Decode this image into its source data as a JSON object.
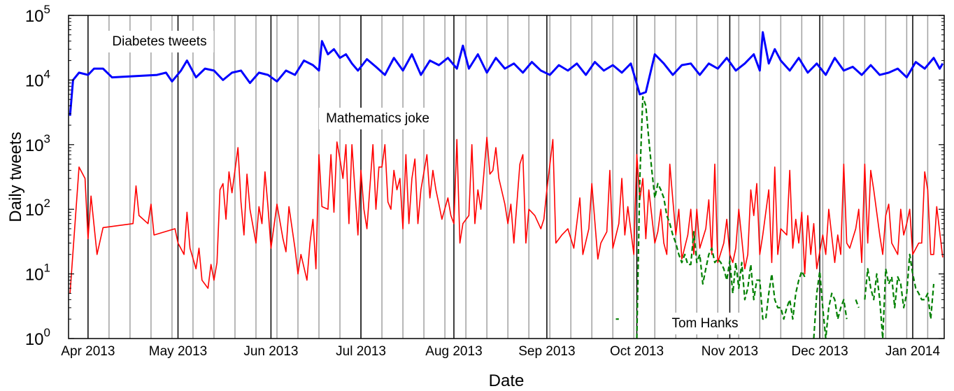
{
  "chart_data": {
    "type": "line",
    "xlabel": "Date",
    "ylabel": "Daily tweets",
    "log_y": true,
    "xlim": [
      -6.5,
      285.5
    ],
    "ylim": [
      1,
      100000
    ],
    "xticks": [
      {
        "value": 0,
        "label": "Apr 2013"
      },
      {
        "value": 30,
        "label": "May 2013"
      },
      {
        "value": 61,
        "label": "Jun 2013"
      },
      {
        "value": 91,
        "label": "Jul 2013"
      },
      {
        "value": 122,
        "label": "Aug 2013"
      },
      {
        "value": 153,
        "label": "Sep 2013"
      },
      {
        "value": 183,
        "label": "Oct 2013"
      },
      {
        "value": 214,
        "label": "Nov 2013"
      },
      {
        "value": 244,
        "label": "Dec 2013"
      },
      {
        "value": 275,
        "label": "Jan 2014"
      }
    ],
    "minor_xticks": [
      7,
      14,
      21,
      28,
      35,
      42,
      49,
      56,
      63,
      70,
      77,
      84,
      91,
      98,
      105,
      112,
      119,
      126,
      133,
      140,
      147,
      154,
      161,
      168,
      175,
      182,
      189,
      196,
      203,
      210,
      217,
      224,
      231,
      238,
      245,
      252,
      259,
      266,
      273,
      280
    ],
    "yticks": [
      {
        "value": 1,
        "label": "10",
        "sup": "0"
      },
      {
        "value": 10,
        "label": "10",
        "sup": "1"
      },
      {
        "value": 100,
        "label": "10",
        "sup": "2"
      },
      {
        "value": 1000,
        "label": "10",
        "sup": "3"
      },
      {
        "value": 10000,
        "label": "10",
        "sup": "4"
      },
      {
        "value": 100000,
        "label": "10",
        "sup": "5"
      }
    ],
    "grid_color": "#000000",
    "minor_grid_color": "#a0a0a0",
    "series": [
      {
        "name": "Diabetes tweets",
        "color": "#0000ff",
        "width": 3,
        "dash": false,
        "x": [
          -6,
          -5,
          -3,
          0,
          2,
          5,
          8,
          23,
          26,
          28,
          31,
          33,
          36,
          39,
          42,
          45,
          48,
          51,
          54,
          57,
          60,
          63,
          66,
          69,
          72,
          75,
          77,
          78,
          80,
          82,
          84,
          86,
          88,
          90,
          93,
          96,
          99,
          102,
          105,
          108,
          111,
          114,
          117,
          120,
          123,
          125,
          127,
          130,
          133,
          136,
          139,
          142,
          145,
          148,
          151,
          154,
          157,
          160,
          163,
          166,
          169,
          172,
          175,
          178,
          181,
          184,
          186,
          189,
          192,
          195,
          198,
          201,
          204,
          207,
          210,
          213,
          216,
          219,
          222,
          224,
          225,
          227,
          229,
          231,
          234,
          237,
          240,
          243,
          246,
          249,
          252,
          255,
          258,
          261,
          264,
          267,
          270,
          273,
          276,
          279,
          282,
          284,
          285
        ],
        "values": [
          2800,
          10000,
          13000,
          12000,
          15000,
          15000,
          11000,
          12000,
          13000,
          9500,
          14000,
          20000,
          11000,
          15000,
          14000,
          10000,
          13000,
          14000,
          9000,
          13000,
          12000,
          9500,
          14000,
          12000,
          20000,
          17000,
          14000,
          40000,
          25000,
          30000,
          22000,
          25000,
          18000,
          14000,
          21000,
          16000,
          12000,
          22000,
          14000,
          25000,
          12000,
          20000,
          17000,
          22000,
          15000,
          34000,
          15000,
          25000,
          13000,
          22000,
          15000,
          18000,
          13000,
          19000,
          14000,
          12000,
          17000,
          14000,
          18000,
          12000,
          19000,
          14000,
          17000,
          13000,
          18000,
          6000,
          6500,
          25000,
          18000,
          12000,
          17000,
          18000,
          12000,
          18000,
          15000,
          22000,
          14000,
          18000,
          25000,
          14000,
          55000,
          18000,
          30000,
          20000,
          14000,
          22000,
          13000,
          18000,
          12000,
          22000,
          14000,
          16000,
          12000,
          17000,
          12000,
          13000,
          15000,
          11000,
          19000,
          15000,
          22000,
          15000,
          18000
        ]
      },
      {
        "name": "Mathematics joke",
        "color": "#ff0000",
        "width": 1.6,
        "dash": false,
        "x": [
          -6,
          -3,
          -1,
          0,
          1,
          3,
          5,
          15,
          16,
          17,
          20,
          21,
          22,
          29,
          30,
          32,
          33,
          34,
          36,
          37,
          38,
          40,
          41,
          42,
          43,
          44,
          45,
          46,
          47,
          48,
          50,
          51,
          52,
          53,
          54,
          56,
          57,
          58,
          59,
          60,
          61,
          63,
          65,
          66,
          67,
          69,
          70,
          71,
          73,
          74,
          75,
          76,
          77,
          78,
          80,
          81,
          82,
          83,
          84,
          85,
          86,
          87,
          88,
          90,
          91,
          92,
          93,
          95,
          96,
          97,
          98,
          99,
          100,
          101,
          102,
          103,
          104,
          105,
          106,
          107,
          108,
          109,
          110,
          111,
          113,
          114,
          115,
          116,
          117,
          118,
          120,
          121,
          122,
          123,
          124,
          125,
          127,
          128,
          129,
          130,
          131,
          133,
          134,
          135,
          136,
          137,
          139,
          140,
          141,
          142,
          144,
          145,
          146,
          147,
          149,
          151,
          152,
          153,
          155,
          156,
          158,
          160,
          162,
          164,
          165,
          167,
          168,
          170,
          171,
          173,
          174,
          175,
          177,
          178,
          179,
          180,
          182,
          183,
          184,
          185,
          186,
          187,
          189,
          190,
          191,
          192,
          193,
          194,
          196,
          197,
          198,
          200,
          201,
          202,
          203,
          204,
          206,
          207,
          208,
          209,
          210,
          212,
          213,
          214,
          215,
          216,
          217,
          219,
          220,
          221,
          222,
          223,
          224,
          225,
          227,
          228,
          229,
          230,
          231,
          233,
          234,
          235,
          236,
          237,
          238,
          239,
          240,
          241,
          242,
          243,
          245,
          246,
          247,
          249,
          250,
          251,
          252,
          253,
          254,
          256,
          257,
          258,
          259,
          260,
          261,
          262,
          264,
          265,
          266,
          267,
          268,
          270,
          271,
          272,
          273,
          274,
          275,
          277,
          278,
          279,
          280,
          281,
          282,
          283,
          285
        ],
        "values": [
          5,
          450,
          300,
          35,
          160,
          20,
          52,
          60,
          230,
          80,
          60,
          120,
          40,
          50,
          30,
          20,
          90,
          25,
          12,
          25,
          8,
          6,
          14,
          8,
          15,
          200,
          250,
          70,
          380,
          180,
          900,
          130,
          40,
          350,
          100,
          30,
          110,
          60,
          380,
          110,
          25,
          120,
          35,
          22,
          110,
          25,
          10,
          20,
          8,
          30,
          70,
          12,
          700,
          110,
          100,
          700,
          90,
          1100,
          600,
          300,
          1000,
          60,
          1000,
          40,
          400,
          100,
          50,
          1000,
          100,
          450,
          450,
          1000,
          130,
          100,
          400,
          200,
          300,
          50,
          700,
          60,
          300,
          600,
          60,
          200,
          700,
          150,
          400,
          200,
          120,
          70,
          150,
          80,
          60,
          1200,
          30,
          60,
          80,
          1000,
          60,
          200,
          100,
          1300,
          350,
          400,
          900,
          300,
          120,
          60,
          120,
          30,
          500,
          700,
          30,
          100,
          80,
          50,
          70,
          200,
          1200,
          30,
          40,
          50,
          25,
          150,
          20,
          50,
          250,
          17,
          30,
          45,
          400,
          25,
          60,
          300,
          40,
          110,
          20,
          700,
          140,
          300,
          35,
          200,
          30,
          45,
          100,
          30,
          20,
          500,
          40,
          100,
          17,
          40,
          100,
          20,
          100,
          25,
          50,
          140,
          20,
          500,
          15,
          30,
          70,
          20,
          15,
          25,
          100,
          12,
          20,
          200,
          80,
          250,
          20,
          40,
          200,
          15,
          450,
          20,
          50,
          40,
          400,
          25,
          70,
          30,
          90,
          10,
          80,
          20,
          60,
          12,
          40,
          20,
          100,
          15,
          40,
          20,
          500,
          30,
          25,
          50,
          100,
          15,
          500,
          30,
          400,
          200,
          40,
          20,
          80,
          120,
          30,
          20,
          100,
          40,
          60,
          100,
          20,
          30,
          30,
          380,
          200,
          20,
          20,
          110,
          18
        ]
      },
      {
        "name": "Tom Hanks",
        "color": "#008000",
        "width": 2.2,
        "dash": true,
        "x": [
          176,
          177,
          178,
          183,
          184,
          185,
          186,
          187,
          188,
          189,
          190,
          191,
          192,
          193,
          194,
          195,
          196,
          197,
          198,
          199,
          200,
          201,
          202,
          203,
          204,
          205,
          206,
          207,
          208,
          209,
          210,
          211,
          212,
          213,
          214,
          215,
          216,
          217,
          218,
          219,
          220,
          221,
          222,
          223,
          224,
          225,
          226,
          227,
          228,
          229,
          230,
          231,
          232,
          233,
          234,
          235,
          236,
          237,
          238,
          239,
          240,
          242,
          243,
          244,
          245,
          246,
          247,
          248,
          249,
          250,
          251,
          252,
          253,
          254,
          256,
          257,
          258,
          259,
          260,
          261,
          262,
          263,
          264,
          265,
          266,
          267,
          268,
          269,
          270,
          271,
          272,
          273,
          274,
          275,
          276,
          277,
          278,
          279,
          280,
          281,
          282
        ],
        "values": [
          2,
          2,
          null,
          1,
          300,
          5500,
          4000,
          1200,
          400,
          150,
          250,
          200,
          150,
          80,
          60,
          40,
          30,
          20,
          15,
          20,
          14,
          14,
          45,
          15,
          20,
          7,
          12,
          20,
          25,
          15,
          17,
          15,
          12,
          8,
          16,
          5,
          15,
          6,
          15,
          4,
          6,
          14,
          4,
          8,
          8,
          2,
          2,
          5,
          10,
          4,
          3,
          3,
          2,
          3,
          4,
          2,
          5,
          8,
          11,
          9,
          null,
          1,
          5,
          11,
          3,
          1,
          3,
          5,
          4,
          2,
          3,
          4,
          2,
          null,
          4,
          3,
          null,
          4,
          12,
          6,
          4,
          10,
          4,
          1,
          12,
          7,
          9,
          3,
          9,
          7,
          3,
          5,
          20,
          10,
          6,
          5,
          4,
          4,
          5,
          2,
          7
        ]
      }
    ],
    "annotations_on_series": true
  }
}
